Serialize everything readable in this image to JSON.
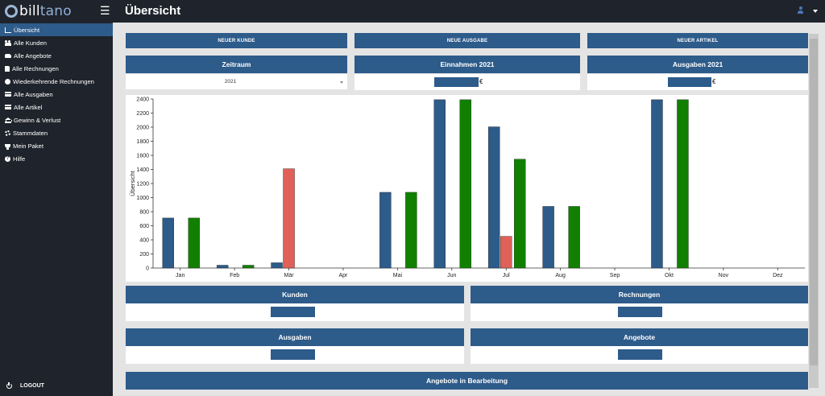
{
  "app": {
    "logo_part1": "bill",
    "logo_part2": "tano",
    "page_title": "Übersicht"
  },
  "sidebar": {
    "items": [
      {
        "label": "Übersicht",
        "icon": "chart-icon",
        "active": true
      },
      {
        "label": "Alle Kunden",
        "icon": "users-icon",
        "active": false
      },
      {
        "label": "Alle Angebote",
        "icon": "handshake-icon",
        "active": false
      },
      {
        "label": "Alle Rechnungen",
        "icon": "file-icon",
        "active": false
      },
      {
        "label": "Wiederkehrende Rechnungen",
        "icon": "clock-icon",
        "active": false
      },
      {
        "label": "Alle Ausgaben",
        "icon": "credit-card-icon",
        "active": false
      },
      {
        "label": "Alle Artikel",
        "icon": "box-icon",
        "active": false
      },
      {
        "label": "Gewinn & Verlust",
        "icon": "bank-icon",
        "active": false
      },
      {
        "label": "Stammdaten",
        "icon": "gear-icon",
        "active": false
      },
      {
        "label": "Mein Paket",
        "icon": "trophy-icon",
        "active": false
      },
      {
        "label": "Hilfe",
        "icon": "help-icon",
        "active": false
      }
    ],
    "logout_label": "LOGOUT"
  },
  "actions": {
    "new_customer": "NEUER KUNDE",
    "new_expense": "NEUE AUSGABE",
    "new_article": "NEUER ARTIKEL"
  },
  "summary": {
    "period_label": "Zeitraum",
    "period_value": "2021",
    "income_label": "Einnahmen 2021",
    "income_currency": "€",
    "expenses_label": "Ausgaben 2021",
    "expenses_currency": "€"
  },
  "stats": {
    "customers_label": "Kunden",
    "invoices_label": "Rechnungen",
    "expenses_label": "Ausgaben",
    "offers_label": "Angebote",
    "offers_in_progress_label": "Angebote in Bearbeitung"
  },
  "colors": {
    "primary": "#2d5b8a",
    "sidebar_bg": "#1f232b",
    "income_green": "#118000",
    "expense_red": "#e06158"
  },
  "chart_data": {
    "type": "bar",
    "ylabel": "Übersicht",
    "ylim": [
      0,
      2400
    ],
    "yticks": [
      0,
      200,
      400,
      600,
      800,
      1000,
      1200,
      1400,
      1600,
      1800,
      2000,
      2200,
      2400
    ],
    "categories": [
      "Jan",
      "Feb",
      "Mär",
      "Apr",
      "Mai",
      "Jun",
      "Jul",
      "Aug",
      "Sep",
      "Okt",
      "Nov",
      "Dez"
    ],
    "series": [
      {
        "color": "#2d5b8a",
        "values": [
          710,
          40,
          75,
          0,
          1075,
          2390,
          2005,
          875,
          0,
          2390,
          0,
          0
        ]
      },
      {
        "color": "#e06158",
        "values": [
          0,
          0,
          1410,
          0,
          0,
          0,
          450,
          0,
          0,
          0,
          0,
          0
        ]
      },
      {
        "color": "#118000",
        "values": [
          710,
          40,
          0,
          0,
          1075,
          2390,
          1545,
          875,
          0,
          2390,
          0,
          0
        ]
      }
    ]
  }
}
